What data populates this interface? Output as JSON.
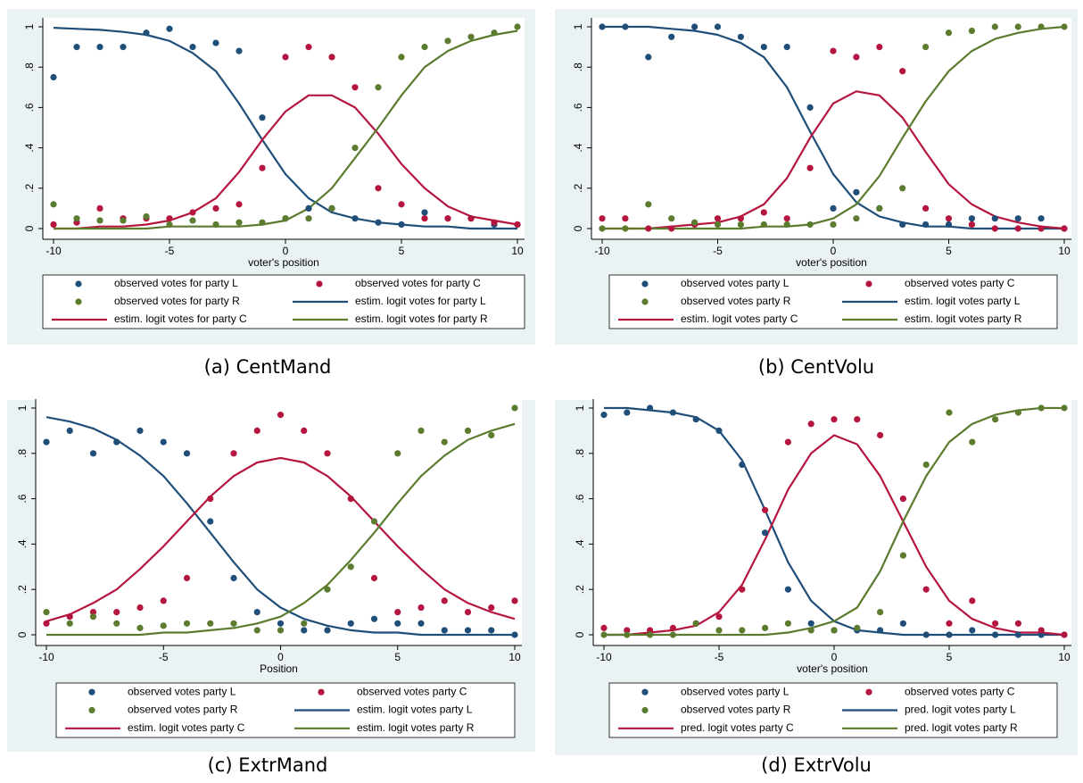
{
  "chart_data": [
    {
      "type": "scatter",
      "caption": "(a) CentMand",
      "xlabel": "voter's position",
      "x": [
        -10,
        -9,
        -8,
        -7,
        -6,
        -5,
        -4,
        -3,
        -2,
        -1,
        0,
        1,
        2,
        3,
        4,
        5,
        6,
        7,
        8,
        9,
        10
      ],
      "xlim": [
        -10,
        10
      ],
      "xticks": [
        -10,
        -5,
        0,
        5,
        10
      ],
      "ylim": [
        0,
        1
      ],
      "yticks": [
        0,
        {
          "value": 0.2,
          "label": ".2"
        },
        {
          "value": 0.4,
          "label": ".4"
        },
        {
          "value": 0.6,
          "label": ".6"
        },
        {
          "value": 0.8,
          "label": ".8"
        },
        1
      ],
      "series": [
        {
          "name": "observed votes for party L",
          "type": "scatter",
          "color": "#1f4e79",
          "values": [
            0.75,
            0.9,
            0.9,
            0.9,
            0.97,
            0.99,
            0.9,
            0.92,
            0.88,
            0.55,
            0.05,
            0.1,
            0.1,
            0.05,
            0.03,
            0.02,
            0.08,
            0.05,
            0.05,
            0.02,
            0.02
          ]
        },
        {
          "name": "observed votes for party C",
          "type": "scatter",
          "color": "#b5163f",
          "values": [
            0.02,
            0.03,
            0.1,
            0.05,
            0.05,
            0.05,
            0.08,
            0.1,
            0.12,
            0.3,
            0.85,
            0.9,
            0.85,
            0.7,
            0.2,
            0.12,
            0.05,
            0.05,
            0.05,
            0.03,
            0.02
          ]
        },
        {
          "name": "observed votes for party R",
          "type": "scatter",
          "color": "#5b7b2f",
          "values": [
            0.12,
            0.05,
            0.04,
            0.04,
            0.06,
            0.02,
            0.04,
            0.02,
            0.03,
            0.03,
            0.05,
            0.05,
            0.1,
            0.4,
            0.7,
            0.85,
            0.9,
            0.93,
            0.95,
            0.97,
            1
          ]
        },
        {
          "name": "estim. logit votes for party L",
          "type": "line",
          "color": "#1f4e79",
          "values": [
            0.995,
            0.99,
            0.985,
            0.975,
            0.96,
            0.93,
            0.87,
            0.78,
            0.62,
            0.44,
            0.27,
            0.15,
            0.08,
            0.05,
            0.03,
            0.02,
            0.01,
            0.01,
            0,
            0,
            0
          ]
        },
        {
          "name": "estim. logit votes for party C",
          "type": "line",
          "color": "#b5163f",
          "values": [
            0,
            0,
            0.01,
            0.01,
            0.02,
            0.04,
            0.08,
            0.15,
            0.28,
            0.44,
            0.58,
            0.66,
            0.66,
            0.6,
            0.47,
            0.32,
            0.2,
            0.11,
            0.06,
            0.04,
            0.02
          ]
        },
        {
          "name": "estim. logit votes for party R",
          "type": "line",
          "color": "#5b7b2f",
          "values": [
            0,
            0,
            0,
            0,
            0,
            0.01,
            0.01,
            0.01,
            0.01,
            0.02,
            0.04,
            0.1,
            0.2,
            0.35,
            0.5,
            0.66,
            0.8,
            0.88,
            0.93,
            0.96,
            0.98
          ]
        }
      ]
    },
    {
      "type": "scatter",
      "caption": "(b) CentVolu",
      "xlabel": "voter's position",
      "x": [
        -10,
        -9,
        -8,
        -7,
        -6,
        -5,
        -4,
        -3,
        -2,
        -1,
        0,
        1,
        2,
        3,
        4,
        5,
        6,
        7,
        8,
        9,
        10
      ],
      "xlim": [
        -10,
        10
      ],
      "xticks": [
        -10,
        -5,
        0,
        5,
        10
      ],
      "ylim": [
        0,
        1
      ],
      "yticks": [
        0,
        {
          "value": 0.2,
          "label": ".2"
        },
        {
          "value": 0.4,
          "label": ".4"
        },
        {
          "value": 0.6,
          "label": ".6"
        },
        {
          "value": 0.8,
          "label": ".8"
        },
        1
      ],
      "series": [
        {
          "name": "observed votes party L",
          "type": "scatter",
          "color": "#1f4e79",
          "values": [
            1,
            1,
            0.85,
            0.95,
            1,
            1,
            0.95,
            0.9,
            0.9,
            0.6,
            0.1,
            0.18,
            0.1,
            0.02,
            0.02,
            0.02,
            0.05,
            0.05,
            0.05,
            0.05,
            0
          ]
        },
        {
          "name": "observed votes party C",
          "type": "scatter",
          "color": "#b5163f",
          "values": [
            0.05,
            0.05,
            0,
            0,
            0.02,
            0.05,
            0.05,
            0.08,
            0.05,
            0.3,
            0.88,
            0.85,
            0.9,
            0.78,
            0.1,
            0.05,
            0.02,
            0,
            0,
            0,
            0
          ]
        },
        {
          "name": "observed votes party R",
          "type": "scatter",
          "color": "#5b7b2f",
          "values": [
            0,
            0,
            0.12,
            0.05,
            0.03,
            0.02,
            0.02,
            0.02,
            0.02,
            0.02,
            0.02,
            0.05,
            0.1,
            0.2,
            0.9,
            0.97,
            0.98,
            1,
            1,
            1,
            1
          ]
        },
        {
          "name": "estim. logit votes party L",
          "type": "line",
          "color": "#1f4e79",
          "values": [
            1,
            1,
            1,
            0.99,
            0.98,
            0.96,
            0.92,
            0.85,
            0.7,
            0.48,
            0.27,
            0.13,
            0.06,
            0.03,
            0.01,
            0.01,
            0,
            0,
            0,
            0,
            0
          ]
        },
        {
          "name": "estim. logit votes party C",
          "type": "line",
          "color": "#b5163f",
          "values": [
            0,
            0,
            0,
            0.01,
            0.02,
            0.03,
            0.06,
            0.12,
            0.25,
            0.45,
            0.62,
            0.68,
            0.66,
            0.55,
            0.38,
            0.22,
            0.12,
            0.06,
            0.03,
            0.01,
            0
          ]
        },
        {
          "name": "estim. logit votes party R",
          "type": "line",
          "color": "#5b7b2f",
          "values": [
            0,
            0,
            0,
            0,
            0,
            0,
            0,
            0.01,
            0.01,
            0.02,
            0.05,
            0.12,
            0.26,
            0.45,
            0.63,
            0.78,
            0.88,
            0.94,
            0.97,
            0.99,
            1
          ]
        }
      ]
    },
    {
      "type": "scatter",
      "caption": "(c) ExtrMand",
      "xlabel": "Position",
      "x": [
        -10,
        -9,
        -8,
        -7,
        -6,
        -5,
        -4,
        -3,
        -2,
        -1,
        0,
        1,
        2,
        3,
        4,
        5,
        6,
        7,
        8,
        9,
        10
      ],
      "xlim": [
        -10,
        10
      ],
      "xticks": [
        -10,
        -5,
        0,
        5,
        10
      ],
      "ylim": [
        0,
        1
      ],
      "yticks": [
        0,
        {
          "value": 0.2,
          "label": ".2"
        },
        {
          "value": 0.4,
          "label": ".4"
        },
        {
          "value": 0.6,
          "label": ".6"
        },
        {
          "value": 0.8,
          "label": ".8"
        },
        1
      ],
      "series": [
        {
          "name": "observed votes party L",
          "type": "scatter",
          "color": "#1f4e79",
          "values": [
            0.85,
            0.9,
            0.8,
            0.85,
            0.9,
            0.85,
            0.8,
            0.5,
            0.25,
            0.1,
            0.05,
            0.02,
            0.02,
            0.05,
            0.07,
            0.05,
            0.05,
            0.02,
            0.02,
            0.02,
            0
          ]
        },
        {
          "name": "observed votes party C",
          "type": "scatter",
          "color": "#b5163f",
          "values": [
            0.05,
            0.08,
            0.1,
            0.1,
            0.12,
            0.15,
            0.25,
            0.6,
            0.8,
            0.9,
            0.97,
            0.9,
            0.8,
            0.6,
            0.25,
            0.1,
            0.12,
            0.15,
            0.1,
            0.12,
            0.15
          ]
        },
        {
          "name": "observed votes party R",
          "type": "scatter",
          "color": "#5b7b2f",
          "values": [
            0.1,
            0.05,
            0.08,
            0.05,
            0.03,
            0.04,
            0.05,
            0.05,
            0.05,
            0.02,
            0.02,
            0.05,
            0.2,
            0.3,
            0.5,
            0.8,
            0.9,
            0.85,
            0.9,
            0.88,
            1
          ]
        },
        {
          "name": "estim. logit votes party L",
          "type": "line",
          "color": "#1f4e79",
          "values": [
            0.96,
            0.94,
            0.91,
            0.86,
            0.79,
            0.7,
            0.58,
            0.45,
            0.32,
            0.2,
            0.12,
            0.07,
            0.04,
            0.02,
            0.01,
            0.01,
            0,
            0,
            0,
            0,
            0
          ]
        },
        {
          "name": "estim. logit votes party C",
          "type": "line",
          "color": "#b5163f",
          "values": [
            0.06,
            0.09,
            0.14,
            0.2,
            0.29,
            0.39,
            0.5,
            0.61,
            0.7,
            0.76,
            0.78,
            0.76,
            0.7,
            0.61,
            0.5,
            0.39,
            0.29,
            0.2,
            0.14,
            0.1,
            0.07
          ]
        },
        {
          "name": "estim. logit votes party R",
          "type": "line",
          "color": "#5b7b2f",
          "values": [
            0,
            0,
            0,
            0,
            0,
            0.01,
            0.01,
            0.02,
            0.03,
            0.05,
            0.08,
            0.14,
            0.22,
            0.33,
            0.45,
            0.58,
            0.7,
            0.79,
            0.86,
            0.9,
            0.93
          ]
        }
      ]
    },
    {
      "type": "scatter",
      "caption": "(d) ExtrVolu",
      "xlabel": "voter's position",
      "x": [
        -10,
        -9,
        -8,
        -7,
        -6,
        -5,
        -4,
        -3,
        -2,
        -1,
        0,
        1,
        2,
        3,
        4,
        5,
        6,
        7,
        8,
        9,
        10
      ],
      "xlim": [
        -10,
        10
      ],
      "xticks": [
        -10,
        -5,
        0,
        5,
        10
      ],
      "ylim": [
        0,
        1
      ],
      "yticks": [
        0,
        {
          "value": 0.2,
          "label": ".2"
        },
        {
          "value": 0.4,
          "label": ".4"
        },
        {
          "value": 0.6,
          "label": ".6"
        },
        {
          "value": 0.8,
          "label": ".8"
        },
        1
      ],
      "series": [
        {
          "name": "observed votes party L",
          "type": "scatter",
          "color": "#1f4e79",
          "values": [
            0.97,
            0.98,
            1,
            0.98,
            0.95,
            0.9,
            0.75,
            0.45,
            0.2,
            0.05,
            0.02,
            0.02,
            0.02,
            0.05,
            0,
            0,
            0.02,
            0,
            0,
            0,
            0
          ]
        },
        {
          "name": "observed votes party C",
          "type": "scatter",
          "color": "#b5163f",
          "values": [
            0.03,
            0.02,
            0.02,
            0.03,
            0.05,
            0.08,
            0.2,
            0.55,
            0.85,
            0.93,
            0.95,
            0.95,
            0.88,
            0.6,
            0.2,
            0.05,
            0.15,
            0.05,
            0.05,
            0.02,
            0
          ]
        },
        {
          "name": "observed votes party R",
          "type": "scatter",
          "color": "#5b7b2f",
          "values": [
            0,
            0,
            0,
            0,
            0.05,
            0.02,
            0.02,
            0.03,
            0.05,
            0.02,
            0.02,
            0.03,
            0.1,
            0.35,
            0.75,
            0.98,
            0.85,
            0.95,
            0.98,
            1,
            1
          ]
        },
        {
          "name": "pred. logit votes party L",
          "type": "line",
          "color": "#1f4e79",
          "values": [
            1,
            1,
            0.99,
            0.98,
            0.96,
            0.9,
            0.77,
            0.55,
            0.32,
            0.15,
            0.06,
            0.02,
            0.01,
            0,
            0,
            0,
            0,
            0,
            0,
            0,
            0
          ]
        },
        {
          "name": "pred. logit votes party C",
          "type": "line",
          "color": "#b5163f",
          "values": [
            0,
            0,
            0.01,
            0.02,
            0.04,
            0.1,
            0.22,
            0.42,
            0.64,
            0.8,
            0.88,
            0.84,
            0.7,
            0.5,
            0.3,
            0.15,
            0.07,
            0.03,
            0.01,
            0.01,
            0
          ]
        },
        {
          "name": "pred. logit votes party R",
          "type": "line",
          "color": "#5b7b2f",
          "values": [
            0,
            0,
            0,
            0,
            0,
            0,
            0,
            0,
            0.01,
            0.03,
            0.06,
            0.12,
            0.28,
            0.5,
            0.7,
            0.85,
            0.93,
            0.97,
            0.99,
            1,
            1
          ]
        }
      ]
    }
  ]
}
